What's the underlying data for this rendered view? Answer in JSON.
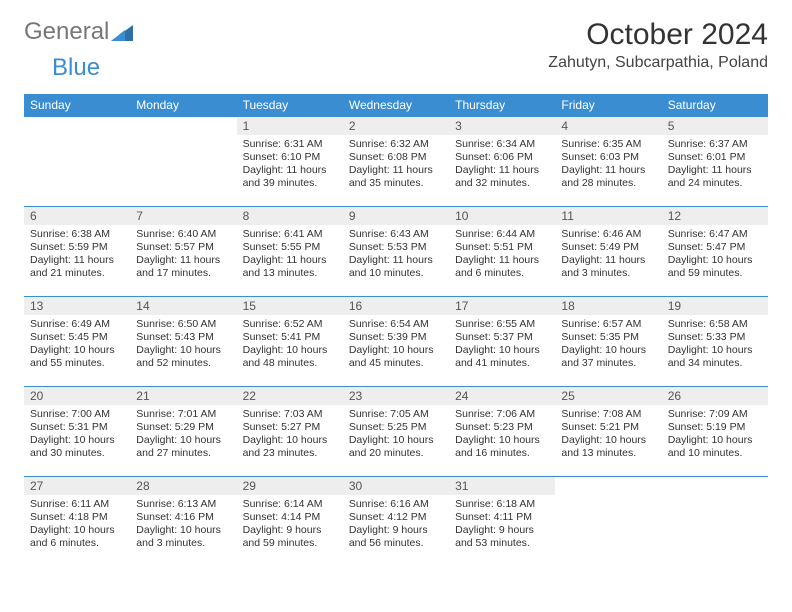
{
  "brand": {
    "part1": "General",
    "part2": "Blue"
  },
  "title": "October 2024",
  "location": "Zahutyn, Subcarpathia, Poland",
  "colors": {
    "header_bg": "#3a8dd0",
    "header_text": "#ffffff",
    "daynum_bg": "#eeeeee",
    "border": "#3a8dd0",
    "background": "#ffffff"
  },
  "dayHeaders": [
    "Sunday",
    "Monday",
    "Tuesday",
    "Wednesday",
    "Thursday",
    "Friday",
    "Saturday"
  ],
  "weeks": [
    [
      {
        "empty": true
      },
      {
        "empty": true
      },
      {
        "n": "1",
        "sunrise": "6:31 AM",
        "sunset": "6:10 PM",
        "daylight": "11 hours and 39 minutes."
      },
      {
        "n": "2",
        "sunrise": "6:32 AM",
        "sunset": "6:08 PM",
        "daylight": "11 hours and 35 minutes."
      },
      {
        "n": "3",
        "sunrise": "6:34 AM",
        "sunset": "6:06 PM",
        "daylight": "11 hours and 32 minutes."
      },
      {
        "n": "4",
        "sunrise": "6:35 AM",
        "sunset": "6:03 PM",
        "daylight": "11 hours and 28 minutes."
      },
      {
        "n": "5",
        "sunrise": "6:37 AM",
        "sunset": "6:01 PM",
        "daylight": "11 hours and 24 minutes."
      }
    ],
    [
      {
        "n": "6",
        "sunrise": "6:38 AM",
        "sunset": "5:59 PM",
        "daylight": "11 hours and 21 minutes."
      },
      {
        "n": "7",
        "sunrise": "6:40 AM",
        "sunset": "5:57 PM",
        "daylight": "11 hours and 17 minutes."
      },
      {
        "n": "8",
        "sunrise": "6:41 AM",
        "sunset": "5:55 PM",
        "daylight": "11 hours and 13 minutes."
      },
      {
        "n": "9",
        "sunrise": "6:43 AM",
        "sunset": "5:53 PM",
        "daylight": "11 hours and 10 minutes."
      },
      {
        "n": "10",
        "sunrise": "6:44 AM",
        "sunset": "5:51 PM",
        "daylight": "11 hours and 6 minutes."
      },
      {
        "n": "11",
        "sunrise": "6:46 AM",
        "sunset": "5:49 PM",
        "daylight": "11 hours and 3 minutes."
      },
      {
        "n": "12",
        "sunrise": "6:47 AM",
        "sunset": "5:47 PM",
        "daylight": "10 hours and 59 minutes."
      }
    ],
    [
      {
        "n": "13",
        "sunrise": "6:49 AM",
        "sunset": "5:45 PM",
        "daylight": "10 hours and 55 minutes."
      },
      {
        "n": "14",
        "sunrise": "6:50 AM",
        "sunset": "5:43 PM",
        "daylight": "10 hours and 52 minutes."
      },
      {
        "n": "15",
        "sunrise": "6:52 AM",
        "sunset": "5:41 PM",
        "daylight": "10 hours and 48 minutes."
      },
      {
        "n": "16",
        "sunrise": "6:54 AM",
        "sunset": "5:39 PM",
        "daylight": "10 hours and 45 minutes."
      },
      {
        "n": "17",
        "sunrise": "6:55 AM",
        "sunset": "5:37 PM",
        "daylight": "10 hours and 41 minutes."
      },
      {
        "n": "18",
        "sunrise": "6:57 AM",
        "sunset": "5:35 PM",
        "daylight": "10 hours and 37 minutes."
      },
      {
        "n": "19",
        "sunrise": "6:58 AM",
        "sunset": "5:33 PM",
        "daylight": "10 hours and 34 minutes."
      }
    ],
    [
      {
        "n": "20",
        "sunrise": "7:00 AM",
        "sunset": "5:31 PM",
        "daylight": "10 hours and 30 minutes."
      },
      {
        "n": "21",
        "sunrise": "7:01 AM",
        "sunset": "5:29 PM",
        "daylight": "10 hours and 27 minutes."
      },
      {
        "n": "22",
        "sunrise": "7:03 AM",
        "sunset": "5:27 PM",
        "daylight": "10 hours and 23 minutes."
      },
      {
        "n": "23",
        "sunrise": "7:05 AM",
        "sunset": "5:25 PM",
        "daylight": "10 hours and 20 minutes."
      },
      {
        "n": "24",
        "sunrise": "7:06 AM",
        "sunset": "5:23 PM",
        "daylight": "10 hours and 16 minutes."
      },
      {
        "n": "25",
        "sunrise": "7:08 AM",
        "sunset": "5:21 PM",
        "daylight": "10 hours and 13 minutes."
      },
      {
        "n": "26",
        "sunrise": "7:09 AM",
        "sunset": "5:19 PM",
        "daylight": "10 hours and 10 minutes."
      }
    ],
    [
      {
        "n": "27",
        "sunrise": "6:11 AM",
        "sunset": "4:18 PM",
        "daylight": "10 hours and 6 minutes."
      },
      {
        "n": "28",
        "sunrise": "6:13 AM",
        "sunset": "4:16 PM",
        "daylight": "10 hours and 3 minutes."
      },
      {
        "n": "29",
        "sunrise": "6:14 AM",
        "sunset": "4:14 PM",
        "daylight": "9 hours and 59 minutes."
      },
      {
        "n": "30",
        "sunrise": "6:16 AM",
        "sunset": "4:12 PM",
        "daylight": "9 hours and 56 minutes."
      },
      {
        "n": "31",
        "sunrise": "6:18 AM",
        "sunset": "4:11 PM",
        "daylight": "9 hours and 53 minutes."
      },
      {
        "empty": true
      },
      {
        "empty": true
      }
    ]
  ],
  "labels": {
    "sunrise": "Sunrise:",
    "sunset": "Sunset:",
    "daylight": "Daylight:"
  }
}
